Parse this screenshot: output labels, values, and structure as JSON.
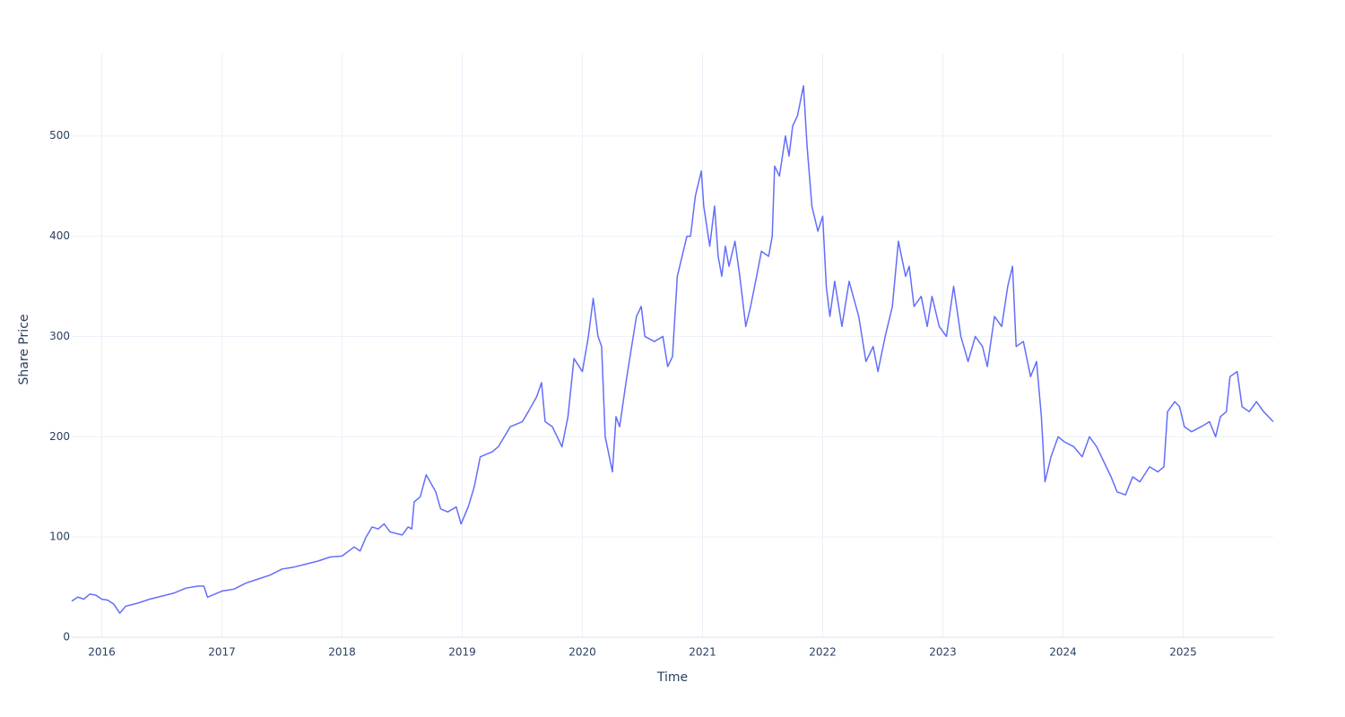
{
  "chart_data": {
    "type": "line",
    "x_label": "Time",
    "y_label": "Share Price",
    "grid": true,
    "xlim": [
      2015.75,
      2025.75
    ],
    "ylim": [
      0,
      582
    ],
    "xticks": [
      2016,
      2017,
      2018,
      2019,
      2020,
      2021,
      2022,
      2023,
      2024,
      2025
    ],
    "yticks": [
      0,
      100,
      200,
      300,
      400,
      500
    ],
    "x": [
      2015.75,
      2015.8,
      2015.85,
      2015.9,
      2015.95,
      2016.0,
      2016.05,
      2016.1,
      2016.15,
      2016.2,
      2016.3,
      2016.4,
      2016.5,
      2016.6,
      2016.7,
      2016.8,
      2016.85,
      2016.88,
      2017.0,
      2017.1,
      2017.2,
      2017.3,
      2017.4,
      2017.5,
      2017.6,
      2017.7,
      2017.8,
      2017.9,
      2018.0,
      2018.1,
      2018.15,
      2018.2,
      2018.25,
      2018.3,
      2018.35,
      2018.4,
      2018.5,
      2018.55,
      2018.58,
      2018.6,
      2018.65,
      2018.7,
      2018.78,
      2018.82,
      2018.88,
      2018.95,
      2018.99,
      2019.05,
      2019.1,
      2019.15,
      2019.25,
      2019.3,
      2019.4,
      2019.5,
      2019.55,
      2019.62,
      2019.66,
      2019.69,
      2019.75,
      2019.83,
      2019.88,
      2019.93,
      2020.0,
      2020.05,
      2020.09,
      2020.13,
      2020.16,
      2020.19,
      2020.25,
      2020.28,
      2020.31,
      2020.37,
      2020.45,
      2020.49,
      2020.52,
      2020.6,
      2020.67,
      2020.71,
      2020.75,
      2020.79,
      2020.84,
      2020.87,
      2020.9,
      2020.94,
      2020.99,
      2021.01,
      2021.06,
      2021.1,
      2021.13,
      2021.16,
      2021.19,
      2021.22,
      2021.27,
      2021.31,
      2021.36,
      2021.4,
      2021.45,
      2021.49,
      2021.55,
      2021.58,
      2021.6,
      2021.64,
      2021.69,
      2021.72,
      2021.75,
      2021.79,
      2021.84,
      2021.87,
      2021.91,
      2021.96,
      2022.0,
      2022.03,
      2022.06,
      2022.1,
      2022.16,
      2022.22,
      2022.3,
      2022.36,
      2022.42,
      2022.46,
      2022.52,
      2022.58,
      2022.63,
      2022.69,
      2022.72,
      2022.76,
      2022.82,
      2022.87,
      2022.91,
      2022.97,
      2023.03,
      2023.09,
      2023.15,
      2023.21,
      2023.27,
      2023.33,
      2023.37,
      2023.43,
      2023.49,
      2023.54,
      2023.58,
      2023.61,
      2023.67,
      2023.73,
      2023.78,
      2023.82,
      2023.85,
      2023.9,
      2023.96,
      2024.01,
      2024.09,
      2024.16,
      2024.22,
      2024.28,
      2024.34,
      2024.4,
      2024.45,
      2024.52,
      2024.58,
      2024.64,
      2024.72,
      2024.79,
      2024.84,
      2024.87,
      2024.93,
      2024.97,
      2025.01,
      2025.07,
      2025.15,
      2025.22,
      2025.27,
      2025.31,
      2025.36,
      2025.39,
      2025.45,
      2025.49,
      2025.55,
      2025.61,
      2025.67,
      2025.75
    ],
    "series": [
      {
        "name": "Share Price",
        "color": "#636efa",
        "values": [
          36,
          40,
          38,
          43,
          42,
          38,
          37,
          33,
          24,
          31,
          34,
          38,
          41,
          44,
          49,
          51,
          51,
          40,
          46,
          48,
          54,
          58,
          62,
          68,
          70,
          73,
          76,
          80,
          81,
          90,
          86,
          100,
          110,
          108,
          113,
          105,
          102,
          110,
          108,
          135,
          140,
          162,
          145,
          128,
          125,
          130,
          113,
          130,
          150,
          180,
          185,
          190,
          210,
          215,
          225,
          240,
          254,
          215,
          210,
          190,
          220,
          278,
          265,
          300,
          338,
          300,
          290,
          200,
          165,
          220,
          210,
          260,
          320,
          330,
          300,
          295,
          300,
          270,
          280,
          360,
          385,
          400,
          400,
          440,
          465,
          430,
          390,
          430,
          380,
          360,
          390,
          370,
          395,
          360,
          310,
          330,
          360,
          385,
          380,
          400,
          470,
          460,
          500,
          480,
          510,
          520,
          550,
          490,
          430,
          405,
          420,
          350,
          320,
          355,
          310,
          355,
          320,
          275,
          290,
          265,
          300,
          330,
          395,
          360,
          370,
          330,
          340,
          310,
          340,
          310,
          300,
          350,
          300,
          275,
          300,
          290,
          270,
          320,
          310,
          350,
          370,
          290,
          295,
          260,
          275,
          220,
          155,
          180,
          200,
          195,
          190,
          180,
          200,
          190,
          175,
          160,
          145,
          142,
          160,
          155,
          170,
          165,
          170,
          225,
          235,
          230,
          210,
          205,
          210,
          215,
          200,
          220,
          225,
          260,
          265,
          230,
          225,
          235,
          225,
          215
        ]
      }
    ]
  }
}
